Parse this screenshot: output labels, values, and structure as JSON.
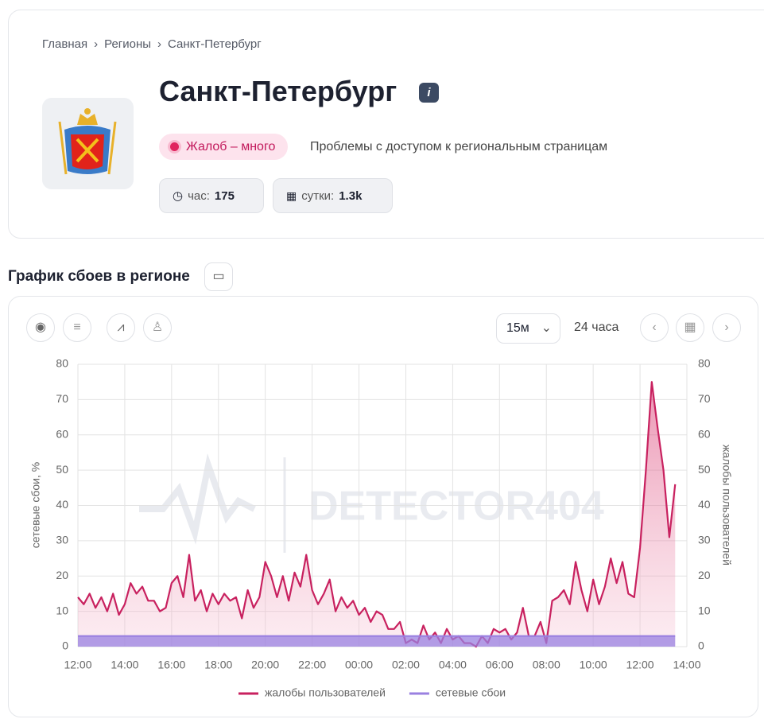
{
  "breadcrumbs": [
    "Главная",
    "Регионы",
    "Санкт-Петербург"
  ],
  "header": {
    "title": "Санкт-Петербург",
    "status": "Жалоб – много",
    "description": "Проблемы с доступом к региональным страницам",
    "stats": [
      {
        "label": "час:",
        "value": 175
      },
      {
        "label": "сутки:",
        "value": "1.3k"
      }
    ]
  },
  "section_title": "График сбоев в регионе",
  "controls": {
    "interval": "15м",
    "range": "24 часа"
  },
  "chart_data": {
    "type": "line",
    "watermark": "DETECTOR404",
    "y_label": "сетевые сбои, %",
    "y2_label": "жалобы пользователей",
    "categories": [
      "12:00",
      null,
      null,
      null,
      null,
      null,
      null,
      null,
      "14:00",
      null,
      null,
      null,
      null,
      null,
      null,
      null,
      "16:00",
      null,
      null,
      null,
      null,
      null,
      null,
      null,
      "18:00",
      null,
      null,
      null,
      null,
      null,
      null,
      null,
      "20:00",
      null,
      null,
      null,
      null,
      null,
      null,
      null,
      "22:00",
      null,
      null,
      null,
      null,
      null,
      null,
      null,
      "00:00",
      null,
      null,
      null,
      null,
      null,
      null,
      null,
      "02:00",
      null,
      null,
      null,
      null,
      null,
      null,
      null,
      "04:00",
      null,
      null,
      null,
      null,
      null,
      null,
      null,
      "06:00",
      null,
      null,
      null,
      null,
      null,
      null,
      null,
      "08:00",
      null,
      null,
      null,
      null,
      null,
      null,
      null,
      "10:00",
      null,
      null,
      null,
      null,
      null,
      null,
      null,
      "12:00",
      null,
      null,
      null,
      null,
      null,
      null,
      null,
      "14:00"
    ],
    "series": [
      {
        "name": "жалобы пользователей",
        "color": "#c8215f",
        "axis": "y2",
        "values": [
          14,
          12,
          15,
          11,
          14,
          10,
          15,
          9,
          12,
          18,
          15,
          17,
          13,
          13,
          10,
          11,
          18,
          20,
          14,
          26,
          13,
          16,
          10,
          15,
          12,
          15,
          13,
          14,
          8,
          16,
          11,
          14,
          24,
          20,
          14,
          20,
          13,
          21,
          17,
          26,
          16,
          12,
          15,
          19,
          10,
          14,
          11,
          13,
          9,
          11,
          7,
          10,
          9,
          5,
          5,
          7,
          1,
          2,
          1,
          6,
          2,
          4,
          1,
          5,
          2,
          3,
          1,
          1,
          0,
          3,
          1,
          5,
          4,
          5,
          2,
          4,
          11,
          3,
          3,
          7,
          1,
          13,
          14,
          16,
          12,
          24,
          16,
          10,
          19,
          12,
          17,
          25,
          18,
          24,
          15,
          14,
          28,
          50,
          75,
          62,
          50,
          31,
          46,
          null,
          null
        ]
      },
      {
        "name": "сетевые сбои",
        "color": "#9a80e0",
        "values": [
          3,
          3,
          3,
          3,
          3,
          3,
          3,
          3,
          3,
          3,
          3,
          3,
          3,
          3,
          3,
          3,
          3,
          3,
          3,
          3,
          3,
          3,
          3,
          3,
          3,
          3,
          3,
          3,
          3,
          3,
          3,
          3,
          3,
          3,
          3,
          3,
          3,
          3,
          3,
          3,
          3,
          3,
          3,
          3,
          3,
          3,
          3,
          3,
          3,
          3,
          3,
          3,
          3,
          3,
          3,
          3,
          3,
          3,
          3,
          3,
          3,
          3,
          3,
          3,
          3,
          3,
          3,
          3,
          3,
          3,
          3,
          3,
          3,
          3,
          3,
          3,
          3,
          3,
          3,
          3,
          3,
          3,
          3,
          3,
          3,
          3,
          3,
          3,
          3,
          3,
          3,
          3,
          3,
          3,
          3,
          3,
          3,
          3,
          3,
          3,
          3,
          3,
          3,
          null,
          null
        ]
      }
    ],
    "ylim": [
      0,
      80
    ],
    "yticks": [
      0,
      10,
      20,
      30,
      40,
      50,
      60,
      70,
      80
    ],
    "y2lim": [
      0,
      80
    ],
    "y2ticks": [
      0,
      10,
      20,
      30,
      40,
      50,
      60,
      70,
      80
    ],
    "grid": true,
    "legend": "bottom"
  }
}
